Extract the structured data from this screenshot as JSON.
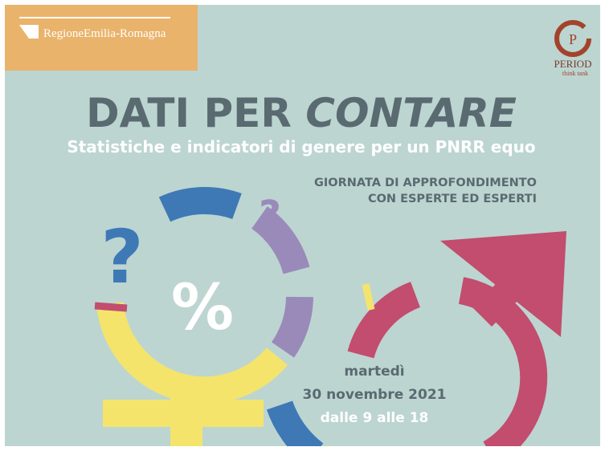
{
  "logo_left": {
    "text": "RegioneEmilia-Romagna"
  },
  "logo_right": {
    "initial": "P",
    "name": "PERIOD",
    "tagline": "think tank"
  },
  "title": {
    "part1": "DATI PER",
    "part2": "CONTARE"
  },
  "subtitle": "Statistiche e indicatori di genere per un PNRR equo",
  "event": {
    "line1": "GIORNATA DI APPROFONDIMENTO",
    "line2": "CON ESPERTE ED ESPERTI"
  },
  "symbols": {
    "question1": "?",
    "question2": "?",
    "percent": "%"
  },
  "date": {
    "weekday": "martedì",
    "day": "30 novembre 2021",
    "time": "dalle 9 alle 18"
  }
}
